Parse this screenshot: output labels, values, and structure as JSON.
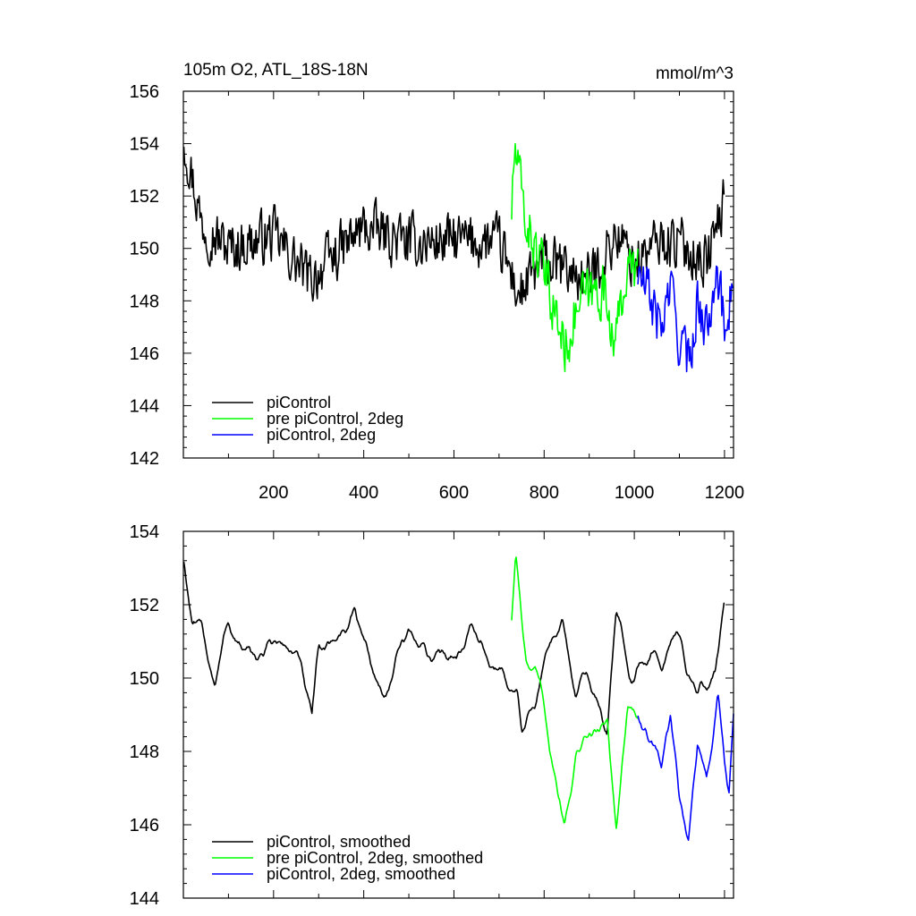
{
  "title_left": "105m O2, ATL_18S-18N",
  "title_right": "mmol/m^3",
  "colors": {
    "piControl": "#000000",
    "pre_piControl_2deg": "#00ff00",
    "piControl_2deg": "#0000ff"
  },
  "chart_data": [
    {
      "type": "line",
      "panel": "top",
      "xlim": [
        0,
        1220
      ],
      "ylim": [
        142,
        156
      ],
      "xticks": [
        200,
        400,
        600,
        800,
        1000,
        1200
      ],
      "yticks": [
        142,
        144,
        146,
        148,
        150,
        152,
        154,
        156
      ],
      "grid": false,
      "legend_placement": "bottom-left",
      "series": [
        {
          "name": "piControl",
          "color": "#000000",
          "x_range": [
            1,
            1200
          ],
          "mean_value": 150.3,
          "range": [
            147.5,
            154.9
          ],
          "anchors": [
            [
              1,
              154.3
            ],
            [
              40,
              151
            ],
            [
              100,
              150
            ],
            [
              200,
              150.5
            ],
            [
              280,
              148.8
            ],
            [
              400,
              150.8
            ],
            [
              500,
              150.2
            ],
            [
              600,
              150.3
            ],
            [
              700,
              150.2
            ],
            [
              745,
              148.2
            ],
            [
              800,
              149.5
            ],
            [
              900,
              148.8
            ],
            [
              960,
              150.5
            ],
            [
              1000,
              149.5
            ],
            [
              1060,
              150.3
            ],
            [
              1100,
              150.2
            ],
            [
              1160,
              149.5
            ],
            [
              1200,
              151.8
            ]
          ]
        },
        {
          "name": "pre piControl, 2deg",
          "color": "#00ff00",
          "x_range": [
            728,
            1008
          ],
          "range": [
            144.5,
            154.9
          ],
          "anchors": [
            [
              728,
              151.5
            ],
            [
              735,
              153.8
            ],
            [
              760,
              151
            ],
            [
              800,
              149
            ],
            [
              830,
              147.2
            ],
            [
              845,
              146.2
            ],
            [
              880,
              148
            ],
            [
              930,
              148.5
            ],
            [
              960,
              146.5
            ],
            [
              980,
              149
            ],
            [
              1008,
              149.3
            ]
          ]
        },
        {
          "name": "piControl, 2deg",
          "color": "#0000ff",
          "x_range": [
            1008,
            1220
          ],
          "range": [
            143.3,
            151.3
          ],
          "anchors": [
            [
              1008,
              149
            ],
            [
              1030,
              148.3
            ],
            [
              1060,
              147
            ],
            [
              1080,
              148.5
            ],
            [
              1100,
              146.5
            ],
            [
              1120,
              145.6
            ],
            [
              1140,
              148
            ],
            [
              1160,
              146.8
            ],
            [
              1180,
              149.5
            ],
            [
              1200,
              147
            ],
            [
              1210,
              148
            ],
            [
              1220,
              149
            ]
          ]
        }
      ],
      "legend": [
        "piControl",
        "pre piControl, 2deg",
        "piControl, 2deg"
      ]
    },
    {
      "type": "line",
      "panel": "bottom",
      "xlim": [
        0,
        1220
      ],
      "ylim": [
        144,
        154
      ],
      "yticks": [
        144,
        146,
        148,
        150,
        152,
        154
      ],
      "grid": false,
      "legend_placement": "bottom-left",
      "series": [
        {
          "name": "piControl, smoothed",
          "color": "#000000",
          "x_range": [
            1,
            1200
          ],
          "range": [
            148.1,
            153.2
          ],
          "anchors": [
            [
              1,
              153.2
            ],
            [
              20,
              151.5
            ],
            [
              40,
              151
            ],
            [
              70,
              150
            ],
            [
              100,
              151.5
            ],
            [
              150,
              150.3
            ],
            [
              200,
              151
            ],
            [
              250,
              150.7
            ],
            [
              285,
              148.6
            ],
            [
              300,
              150.5
            ],
            [
              380,
              151.8
            ],
            [
              440,
              149.6
            ],
            [
              500,
              151
            ],
            [
              560,
              150.5
            ],
            [
              640,
              151.3
            ],
            [
              680,
              150.5
            ],
            [
              740,
              149.6
            ],
            [
              750,
              148.3
            ],
            [
              800,
              150.5
            ],
            [
              840,
              151.8
            ],
            [
              870,
              149.5
            ],
            [
              900,
              150
            ],
            [
              940,
              148.6
            ],
            [
              960,
              151.8
            ],
            [
              1000,
              150.3
            ],
            [
              1060,
              150.8
            ],
            [
              1100,
              151
            ],
            [
              1140,
              149.5
            ],
            [
              1180,
              150.2
            ],
            [
              1200,
              151.8
            ]
          ]
        },
        {
          "name": "pre piControl, 2deg, smoothed",
          "color": "#00ff00",
          "x_range": [
            728,
            1008
          ],
          "range": [
            145.9,
            153.6
          ],
          "anchors": [
            [
              728,
              151.6
            ],
            [
              737,
              153.5
            ],
            [
              760,
              150.8
            ],
            [
              790,
              149.5
            ],
            [
              810,
              148.5
            ],
            [
              845,
              146.2
            ],
            [
              870,
              148
            ],
            [
              900,
              148.3
            ],
            [
              940,
              148.8
            ],
            [
              960,
              146
            ],
            [
              985,
              149.2
            ],
            [
              1008,
              149
            ]
          ]
        },
        {
          "name": "piControl, 2deg, smoothed",
          "color": "#0000ff",
          "x_range": [
            1008,
            1220
          ],
          "range": [
            145.3,
            150.3
          ],
          "anchors": [
            [
              1008,
              149
            ],
            [
              1030,
              148.3
            ],
            [
              1060,
              147.2
            ],
            [
              1080,
              148.5
            ],
            [
              1100,
              146.5
            ],
            [
              1120,
              145.5
            ],
            [
              1140,
              148.2
            ],
            [
              1160,
              147
            ],
            [
              1185,
              149.3
            ],
            [
              1200,
              147.5
            ],
            [
              1210,
              146.9
            ],
            [
              1220,
              148.8
            ]
          ]
        }
      ],
      "legend": [
        "piControl, smoothed",
        "pre piControl, 2deg, smoothed",
        "piControl, 2deg, smoothed"
      ]
    }
  ]
}
